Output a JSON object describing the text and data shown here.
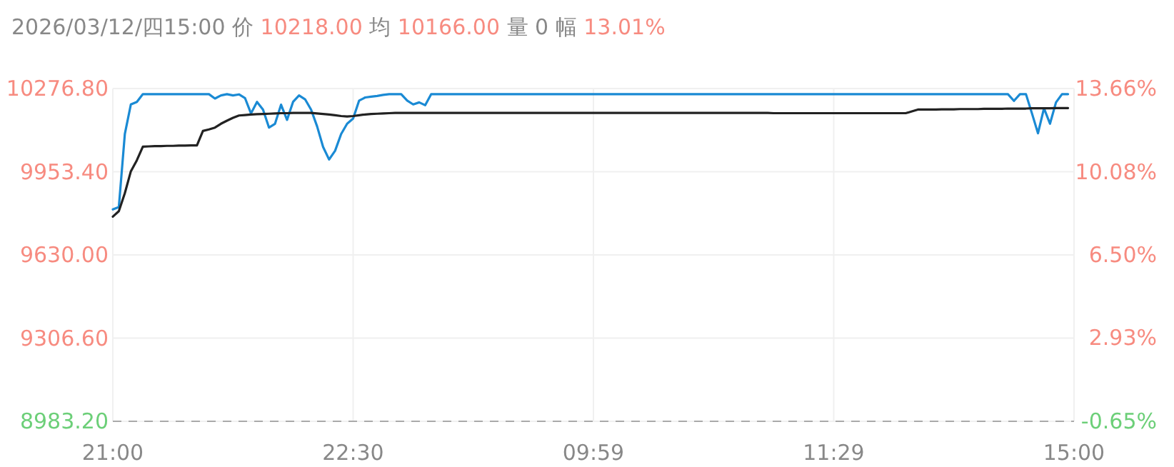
{
  "chart_data": {
    "type": "line",
    "title": "2026/03/12/四15:00 价 10218.00 均 10166.00 量 0 幅 13.01%",
    "categories": [
      "21:00",
      null,
      null,
      null,
      null,
      null,
      null,
      null,
      null,
      null,
      null,
      null,
      null,
      null,
      null,
      null,
      null,
      null,
      null,
      null,
      null,
      null,
      null,
      null,
      null,
      null,
      null,
      null,
      null,
      null,
      null,
      null,
      null,
      null,
      null,
      null,
      null,
      null,
      null,
      null,
      "22:30",
      null,
      null,
      null,
      null,
      null,
      null,
      null,
      null,
      null,
      null,
      null,
      null,
      null,
      null,
      null,
      null,
      null,
      null,
      null,
      null,
      null,
      null,
      null,
      null,
      null,
      null,
      null,
      null,
      null,
      null,
      null,
      null,
      null,
      null,
      null,
      null,
      null,
      null,
      null,
      "09:59",
      null,
      null,
      null,
      null,
      null,
      null,
      null,
      null,
      null,
      null,
      null,
      null,
      null,
      null,
      null,
      null,
      null,
      null,
      null,
      null,
      null,
      null,
      null,
      null,
      null,
      null,
      null,
      null,
      null,
      null,
      null,
      null,
      null,
      null,
      null,
      null,
      null,
      null,
      null,
      "11:29",
      null,
      null,
      null,
      null,
      null,
      null,
      null,
      null,
      null,
      null,
      null,
      null,
      null,
      null,
      null,
      null,
      null,
      null,
      null,
      null,
      null,
      null,
      null,
      null,
      null,
      null,
      null,
      null,
      null,
      null,
      null,
      null,
      null,
      null,
      null,
      null,
      null,
      null,
      null,
      "15:00"
    ],
    "ylim": [
      8983.2,
      10276.8
    ],
    "yticks": [
      {
        "value": 8983.2,
        "label": "8983.20"
      },
      {
        "value": 9306.6,
        "label": "9306.60"
      },
      {
        "value": 9630,
        "label": "9630.00"
      },
      {
        "value": 9953.4,
        "label": "9953.40"
      },
      {
        "value": 10276.8,
        "label": "10276.80"
      }
    ],
    "y2lim": [
      -0.65,
      13.66
    ],
    "y2ticks": [
      {
        "value": -0.65,
        "label": "-0.65%"
      },
      {
        "value": 2.93,
        "label": "2.93%"
      },
      {
        "value": 6.5,
        "label": "6.50%"
      },
      {
        "value": 10.08,
        "label": "10.08%"
      },
      {
        "value": 13.66,
        "label": "13.66%"
      }
    ],
    "grid": true,
    "line_style": "solid",
    "marker": "none",
    "ref_lines": [
      {
        "axis": "y",
        "value": 8983.2,
        "color": "#aaaaaa",
        "line_style": "dashed"
      }
    ],
    "series": [
      {
        "color": "#1a8ad4",
        "values": [
          9807,
          9816,
          10100,
          10215,
          10225,
          10255,
          10255,
          10255,
          10255,
          10255,
          10255,
          10255,
          10255,
          10255,
          10255,
          10255,
          10255,
          10238,
          10250,
          10255,
          10250,
          10254,
          10240,
          10180,
          10225,
          10195,
          10125,
          10140,
          10214,
          10155,
          10225,
          10250,
          10235,
          10195,
          10130,
          10050,
          10001,
          10035,
          10100,
          10140,
          10160,
          10230,
          10242,
          10245,
          10248,
          10252,
          10255,
          10255,
          10255,
          10230,
          10215,
          10223,
          10212,
          10255,
          10255,
          10255,
          10255,
          10255,
          10255,
          10255,
          10255,
          10255,
          10255,
          10255,
          10255,
          10255,
          10255,
          10255,
          10255,
          10255,
          10255,
          10255,
          10255,
          10255,
          10255,
          10255,
          10255,
          10255,
          10255,
          10255,
          10255,
          10255,
          10255,
          10255,
          10255,
          10255,
          10255,
          10255,
          10255,
          10255,
          10255,
          10255,
          10255,
          10255,
          10255,
          10255,
          10255,
          10255,
          10255,
          10255,
          10255,
          10255,
          10255,
          10255,
          10255,
          10255,
          10255,
          10255,
          10255,
          10255,
          10255,
          10255,
          10255,
          10255,
          10255,
          10255,
          10255,
          10255,
          10255,
          10255,
          10255,
          10255,
          10255,
          10255,
          10255,
          10255,
          10255,
          10255,
          10255,
          10255,
          10255,
          10255,
          10255,
          10255,
          10255,
          10255,
          10255,
          10255,
          10255,
          10255,
          10255,
          10255,
          10255,
          10255,
          10255,
          10255,
          10255,
          10255,
          10255,
          10255,
          10229,
          10255,
          10255,
          10180,
          10103,
          10200,
          10140,
          10223,
          10255,
          10255,
          null
        ]
      },
      {
        "color": "#222222",
        "values": [
          9779,
          9800,
          9870,
          9955,
          9998,
          10051,
          10052,
          10053,
          10053,
          10054,
          10054,
          10055,
          10055,
          10056,
          10056,
          10112,
          10118,
          10125,
          10140,
          10152,
          10163,
          10172,
          10174,
          10176,
          10177,
          10178,
          10179,
          10180,
          10181,
          10181,
          10182,
          10182,
          10182,
          10182,
          10180,
          10178,
          10176,
          10173,
          10170,
          10168,
          10170,
          10173,
          10176,
          10178,
          10179,
          10180,
          10181,
          10182,
          10182,
          10182,
          10182,
          10182,
          10182,
          10182,
          10182,
          10182,
          10182,
          10182,
          10182,
          10182,
          10182,
          10182,
          10182,
          10182,
          10182,
          10182,
          10182,
          10182,
          10182,
          10182,
          10182,
          10182,
          10182,
          10182,
          10182,
          10182,
          10182,
          10182,
          10182,
          10182,
          10182,
          10182,
          10182,
          10182,
          10182,
          10182,
          10182,
          10182,
          10182,
          10182,
          10182,
          10182,
          10182,
          10182,
          10182,
          10182,
          10182,
          10182,
          10182,
          10182,
          10182,
          10182,
          10182,
          10182,
          10182,
          10182,
          10182,
          10182,
          10182,
          10182,
          10181,
          10181,
          10181,
          10181,
          10181,
          10181,
          10181,
          10181,
          10181,
          10181,
          10181,
          10181,
          10181,
          10181,
          10181,
          10181,
          10181,
          10181,
          10181,
          10181,
          10181,
          10181,
          10181,
          10188,
          10195,
          10195,
          10195,
          10195,
          10196,
          10196,
          10196,
          10197,
          10197,
          10197,
          10197,
          10198,
          10198,
          10198,
          10198,
          10199,
          10199,
          10199,
          10199,
          10200,
          10200,
          10200,
          10200,
          10201,
          10201,
          10201,
          null
        ]
      }
    ]
  }
}
